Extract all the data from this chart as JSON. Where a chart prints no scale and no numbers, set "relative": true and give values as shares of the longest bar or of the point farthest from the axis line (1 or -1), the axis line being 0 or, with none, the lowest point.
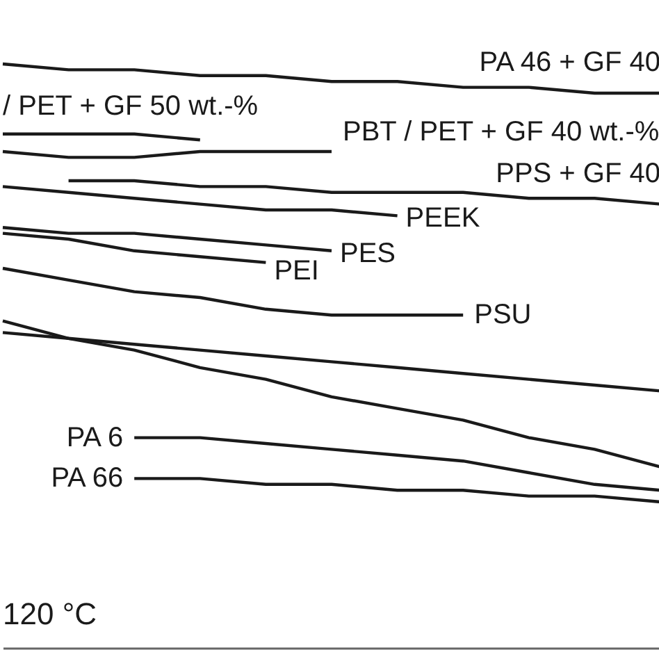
{
  "chart_data": {
    "type": "line",
    "relative": true,
    "legend": false,
    "categories": [
      null,
      null,
      null,
      null,
      null,
      null,
      null,
      null,
      null,
      null,
      null
    ],
    "series": [
      {
        "name": "PA 46 + GF 40",
        "color": "#1a1a1a",
        "values": [
          1,
          0.99,
          0.99,
          0.98,
          0.98,
          0.97,
          0.97,
          0.96,
          0.96,
          0.95,
          0.95
        ]
      },
      {
        "name": "/ PET + GF 50 wt.-%",
        "color": "#1a1a1a",
        "values": [
          0.88,
          0.88,
          0.88,
          0.87,
          null,
          null,
          null,
          null,
          null,
          null,
          null
        ]
      },
      {
        "name": "PBT / PET + GF 40 wt.-%",
        "color": "#1a1a1a",
        "values": [
          0.85,
          0.84,
          0.84,
          0.85,
          0.85,
          0.85,
          null,
          null,
          null,
          null,
          null
        ]
      },
      {
        "name": "PPS + GF 40",
        "color": "#1a1a1a",
        "values": [
          null,
          0.8,
          0.8,
          0.79,
          0.79,
          0.78,
          0.78,
          0.78,
          0.77,
          0.77,
          0.76
        ]
      },
      {
        "name": "PEEK",
        "color": "#1a1a1a",
        "values": [
          0.79,
          0.78,
          0.77,
          0.76,
          0.75,
          0.75,
          0.74,
          null,
          null,
          null,
          null
        ]
      },
      {
        "name": "PES",
        "color": "#1a1a1a",
        "values": [
          0.72,
          0.71,
          0.71,
          0.7,
          0.69,
          0.68,
          null,
          null,
          null,
          null,
          null
        ]
      },
      {
        "name": "PEI",
        "color": "#1a1a1a",
        "values": [
          0.71,
          0.7,
          0.68,
          0.67,
          0.66,
          null,
          null,
          null,
          null,
          null,
          null
        ]
      },
      {
        "name": "PSU",
        "color": "#1a1a1a",
        "values": [
          0.65,
          0.63,
          0.61,
          0.6,
          0.58,
          0.57,
          0.57,
          0.57,
          null,
          null,
          null
        ]
      },
      {
        "color": "#1a1a1a",
        "values": [
          0.54,
          0.53,
          0.52,
          0.51,
          0.5,
          0.49,
          0.48,
          0.47,
          0.46,
          0.45,
          0.44
        ]
      },
      {
        "color": "#1a1a1a",
        "values": [
          0.56,
          0.53,
          0.51,
          0.48,
          0.46,
          0.43,
          0.41,
          0.39,
          0.36,
          0.34,
          0.31
        ]
      },
      {
        "name": "PA 6",
        "color": "#1a1a1a",
        "values": [
          null,
          null,
          0.36,
          0.36,
          0.35,
          0.34,
          0.33,
          0.32,
          0.3,
          0.28,
          0.27
        ]
      },
      {
        "name": "PA 66",
        "color": "#1a1a1a",
        "values": [
          null,
          null,
          0.29,
          0.29,
          0.28,
          0.28,
          0.27,
          0.27,
          0.26,
          0.26,
          0.25
        ]
      }
    ],
    "annotations": [
      "120 °C"
    ]
  }
}
